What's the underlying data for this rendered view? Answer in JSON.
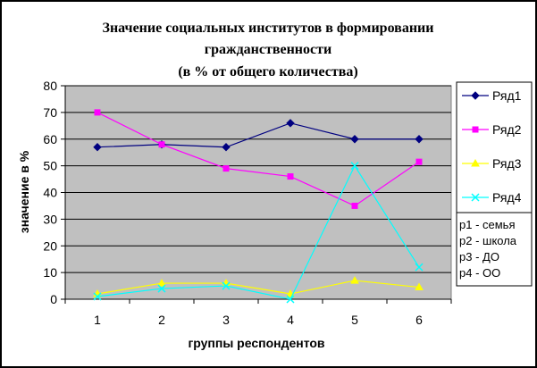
{
  "chart_data": {
    "type": "line",
    "title": "Значение социальных институтов в формировании гражданственности",
    "title_line1": "Значение социальных институтов в формировании",
    "title_line2": "гражданственности",
    "subtitle": "(в % от общего количества)",
    "xlabel": "группы респондентов",
    "ylabel": "значение в %",
    "ylim": [
      0,
      80
    ],
    "yticks": [
      "0",
      "10",
      "20",
      "30",
      "40",
      "50",
      "60",
      "70",
      "80"
    ],
    "categories": [
      "1",
      "2",
      "3",
      "4",
      "5",
      "6"
    ],
    "grid": true,
    "plot_background": "#c0c0c0",
    "legend_position": "right",
    "series": [
      {
        "name": "Ряд1",
        "color": "#000080",
        "marker": "diamond",
        "values": [
          57,
          58,
          57,
          66,
          60,
          60
        ]
      },
      {
        "name": "Ряд2",
        "color": "#ff00ff",
        "marker": "square",
        "values": [
          70,
          58,
          49,
          46,
          35,
          51.5
        ]
      },
      {
        "name": "Ряд3",
        "color": "#ffff00",
        "marker": "triangle",
        "values": [
          2,
          6,
          6,
          2,
          7,
          4.5
        ]
      },
      {
        "name": "Ряд4",
        "color": "#00ffff",
        "marker": "x",
        "values": [
          1,
          4,
          5,
          0,
          50,
          12
        ]
      }
    ],
    "notes": [
      "р1 - семья",
      "р2 - школа",
      "р3 - ДО",
      "р4 - ОО"
    ]
  }
}
